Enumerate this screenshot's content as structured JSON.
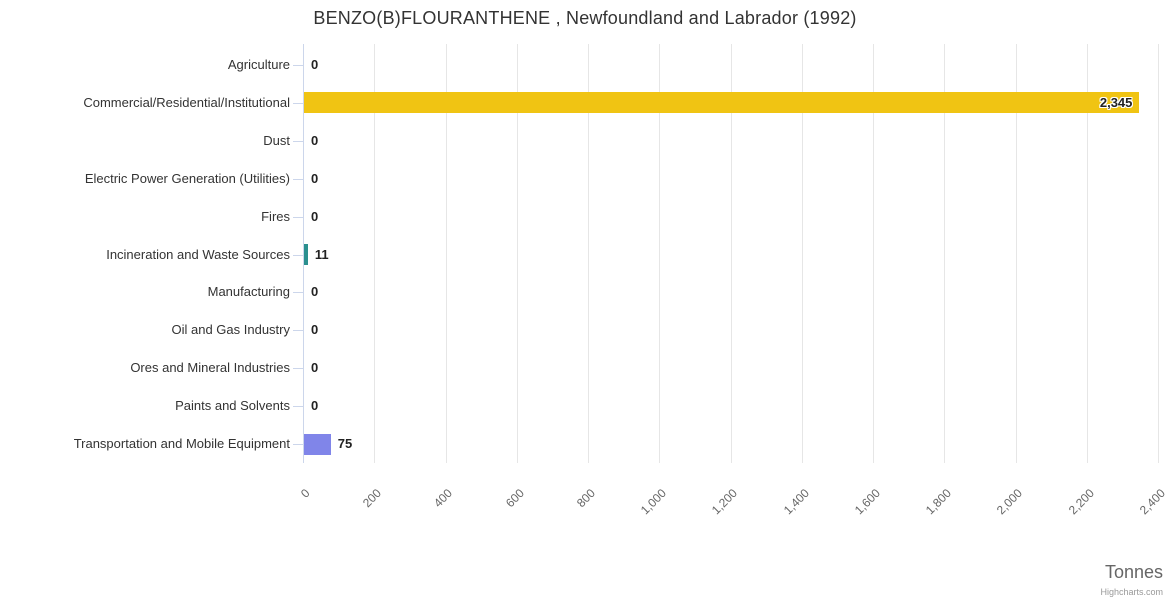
{
  "chart_data": {
    "type": "bar",
    "title": "BENZO(B)FLOURANTHENE , Newfoundland and Labrador (1992)",
    "orientation": "horizontal",
    "categories": [
      "Agriculture",
      "Commercial/Residential/Institutional",
      "Dust",
      "Electric Power Generation (Utilities)",
      "Fires",
      "Incineration and Waste Sources",
      "Manufacturing",
      "Oil and Gas Industry",
      "Ores and Mineral Industries",
      "Paints and Solvents",
      "Transportation and Mobile Equipment"
    ],
    "values": [
      0,
      2345,
      0,
      0,
      0,
      11,
      0,
      0,
      0,
      0,
      75
    ],
    "values_formatted": [
      "0",
      "2,345",
      "0",
      "0",
      "0",
      "11",
      "0",
      "0",
      "0",
      "0",
      "75"
    ],
    "bar_colors": [
      null,
      "#f0c413",
      null,
      null,
      null,
      "#2b908f",
      null,
      null,
      null,
      null,
      "#8085e9"
    ],
    "xlabel": "Tonnes",
    "ylabel": "",
    "x_tick_labels": [
      "0",
      "200",
      "400",
      "600",
      "800",
      "1,000",
      "1,200",
      "1,400",
      "1,600",
      "1,800",
      "2,000",
      "2,200",
      "2,400"
    ],
    "xlim": [
      0,
      2400
    ],
    "grid": true,
    "legend": false,
    "credits": "Highcharts.com"
  },
  "colors": {
    "grid": "#e6e6e6",
    "axis_line": "#ccd6eb",
    "title_text": "#333333",
    "category_text": "#333333",
    "tick_text": "#666666",
    "value_text": "#222222",
    "axis_title_text": "#666666",
    "credits_text": "#999999"
  }
}
